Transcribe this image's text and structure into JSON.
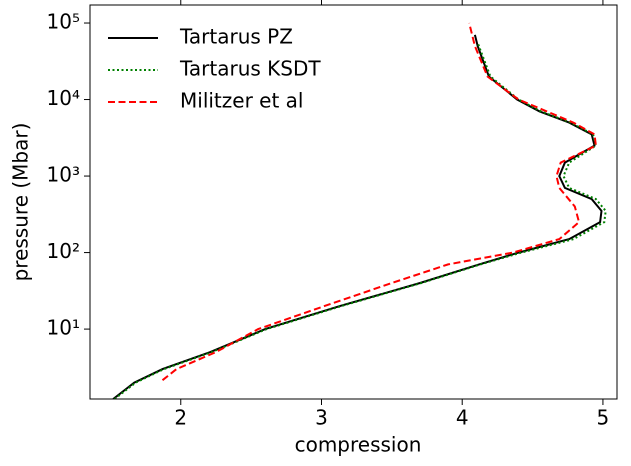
{
  "chart_data": {
    "type": "line",
    "xlabel": "compression",
    "ylabel": "pressure (Mbar)",
    "xlim": [
      1.355,
      5.1
    ],
    "ylim": [
      1.22,
      172000
    ],
    "ylog": true,
    "xticks": [
      2,
      3,
      4,
      5
    ],
    "yticks": [
      {
        "value": 10,
        "label": "10¹"
      },
      {
        "value": 100,
        "label": "10²"
      },
      {
        "value": 1000,
        "label": "10³"
      },
      {
        "value": 10000,
        "label": "10⁴"
      },
      {
        "value": 100000,
        "label": "10⁵"
      }
    ],
    "legend": "upper left",
    "series": [
      {
        "name": "Tartarus PZ",
        "color": "#000000",
        "linestyle": "solid",
        "x": [
          1.52,
          1.67,
          1.87,
          2.21,
          2.6,
          3.13,
          3.7,
          4.12,
          4.4,
          4.76,
          4.98,
          4.99,
          4.92,
          4.73,
          4.69,
          4.73,
          4.94,
          4.92,
          4.76,
          4.55,
          4.39,
          4.19,
          4.11,
          4.09
        ],
        "values": [
          1.22,
          2,
          3,
          5,
          10,
          20,
          40,
          70,
          100,
          150,
          250,
          350,
          500,
          700,
          1000,
          1500,
          2500,
          3500,
          5000,
          7000,
          10000,
          20000,
          50000,
          70000
        ]
      },
      {
        "name": "Tartarus KSDT",
        "color": "#008000",
        "linestyle": "dotted",
        "x": [
          1.53,
          1.68,
          1.88,
          2.22,
          2.61,
          3.14,
          3.71,
          4.13,
          4.42,
          4.79,
          5.01,
          5.02,
          4.95,
          4.76,
          4.72,
          4.76,
          4.95,
          4.93,
          4.77,
          4.56,
          4.4,
          4.2,
          4.11
        ],
        "values": [
          1.22,
          2,
          3,
          5,
          10,
          20,
          40,
          70,
          100,
          150,
          250,
          350,
          500,
          700,
          1000,
          1500,
          2500,
          3500,
          5000,
          7000,
          10000,
          20000,
          55000
        ]
      },
      {
        "name": "Militzer et al",
        "color": "#ff0000",
        "linestyle": "dashed",
        "x": [
          1.87,
          1.97,
          2.25,
          2.55,
          3.02,
          3.5,
          3.9,
          4.36,
          4.69,
          4.83,
          4.8,
          4.69,
          4.67,
          4.7,
          4.95,
          4.94,
          4.79,
          4.4,
          4.18,
          4.09,
          4.05
        ],
        "values": [
          2.15,
          3,
          5,
          10,
          20,
          40,
          70,
          100,
          150,
          250,
          400,
          700,
          1000,
          1500,
          2500,
          3500,
          5000,
          10000,
          20000,
          50000,
          100000
        ]
      }
    ]
  }
}
